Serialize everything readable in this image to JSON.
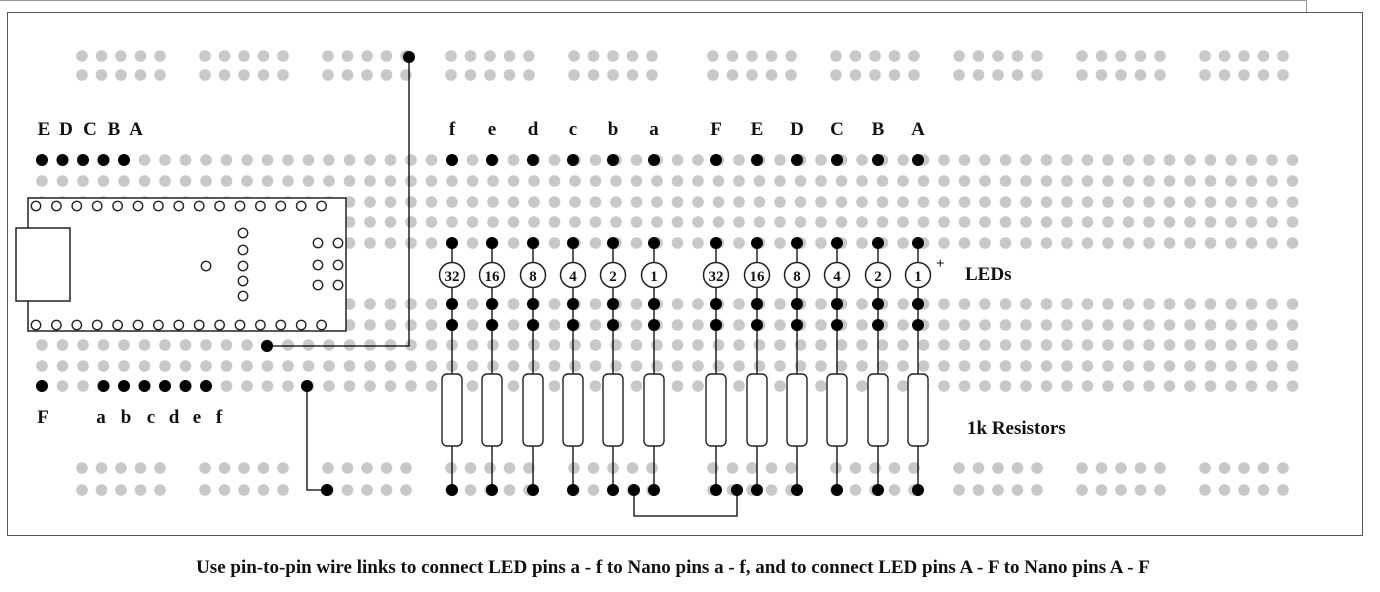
{
  "labels": {
    "nano_top_pins": [
      "E",
      "D",
      "C",
      "B",
      "A"
    ],
    "nano_bottom_pins": [
      "F",
      "a",
      "b",
      "c",
      "d",
      "e",
      "f"
    ],
    "led_pins": [
      "f",
      "e",
      "d",
      "c",
      "b",
      "a",
      "F",
      "E",
      "D",
      "C",
      "B",
      "A"
    ],
    "led_values": [
      "32",
      "16",
      "8",
      "4",
      "2",
      "1",
      "32",
      "16",
      "8",
      "4",
      "2",
      "1"
    ],
    "led_plus": "+",
    "leds_label": "LEDs",
    "resistors_label": "1k Resistors"
  },
  "caption": "Use pin-to-pin wire links to connect LED pins a - f  to Nano pins a - f, and to connect LED pins A - F to Nano pins A - F",
  "colors": {
    "hole": "#c8c8c8",
    "pin": "#000000",
    "wire": "#000000",
    "outline": "#222222"
  }
}
